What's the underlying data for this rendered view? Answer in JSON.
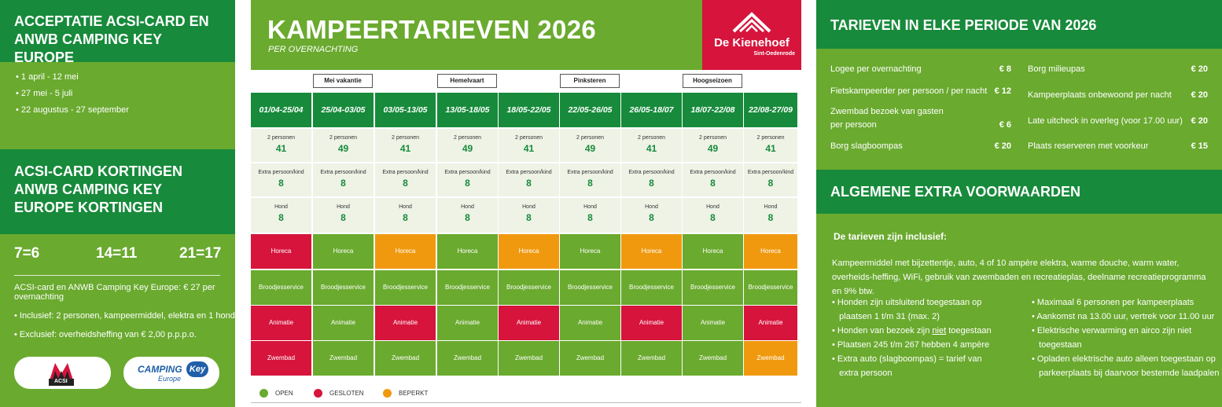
{
  "left": {
    "acceptance_title": "ACCEPTATIE ACSI-CARD EN ANWB CAMPING KEY EUROPE",
    "dates": [
      "1 april - 12 mei",
      "27 mei - 5 juli",
      "22 augustus - 27 september"
    ],
    "discount_title": "ACSI-CARD KORTINGEN ANWB CAMPING KEY EUROPE KORTINGEN",
    "discounts": [
      "7=6",
      "14=11",
      "21=17"
    ],
    "rules": [
      "ACSI-card en ANWB Camping Key Europe: € 27 per overnachting",
      "Inclusief: 2 personen, kampeermiddel, elektra en 1 hond",
      "Exclusief: overheidsheffing van € 2,00 p.p.p.o."
    ],
    "logos": {
      "acsi": "ACSI",
      "camping": "CAMPING",
      "key": "Key",
      "europe": "Europe"
    }
  },
  "middle": {
    "title": "KAMPEERTARIEVEN 2026",
    "subtitle": "PER OVERNACHTING",
    "brand": {
      "name": "De Kienehoef",
      "place": "Sint-Oedenrode",
      "color": "#d6143c"
    },
    "holidays": [
      "Mei vakantie",
      "Hemelvaart",
      "Pinksteren",
      "Hoogseizoen"
    ],
    "periods": [
      "01/04-25/04",
      "25/04-03/05",
      "03/05-13/05",
      "13/05-18/05",
      "18/05-22/05",
      "22/05-26/05",
      "26/05-18/07",
      "18/07-22/08",
      "22/08-27/09"
    ],
    "price_rows": [
      {
        "label": "2 personen",
        "values": [
          "41",
          "49",
          "41",
          "49",
          "41",
          "49",
          "41",
          "49",
          "41"
        ]
      },
      {
        "label": "Extra persoon/kind",
        "values": [
          "8",
          "8",
          "8",
          "8",
          "8",
          "8",
          "8",
          "8",
          "8"
        ]
      },
      {
        "label": "Hond",
        "values": [
          "8",
          "8",
          "8",
          "8",
          "8",
          "8",
          "8",
          "8",
          "8"
        ]
      }
    ],
    "facilities": [
      {
        "label": "Horeca",
        "status": [
          "gesloten",
          "open",
          "beperkt",
          "open",
          "beperkt",
          "open",
          "beperkt",
          "open",
          "beperkt"
        ]
      },
      {
        "label": "Broodjesservice",
        "status": [
          "open",
          "open",
          "open",
          "open",
          "open",
          "open",
          "open",
          "open",
          "open"
        ]
      },
      {
        "label": "Animatie",
        "status": [
          "gesloten",
          "open",
          "gesloten",
          "open",
          "gesloten",
          "open",
          "gesloten",
          "open",
          "gesloten"
        ]
      },
      {
        "label": "Zwembad",
        "status": [
          "gesloten",
          "open",
          "open",
          "open",
          "open",
          "open",
          "open",
          "open",
          "beperkt"
        ]
      }
    ],
    "legend": [
      {
        "label": "OPEN",
        "color": "#6aaa2f"
      },
      {
        "label": "GESLOTEN",
        "color": "#d6143c"
      },
      {
        "label": "BEPERKT",
        "color": "#f0990f"
      }
    ]
  },
  "right": {
    "tariffs_title": "TARIEVEN IN ELKE PERIODE VAN 2026",
    "tariffs_left": [
      {
        "label": "Logee per overnachting",
        "price": "€  8"
      },
      {
        "label": "Fietskampeerder per persoon / per nacht",
        "price": "€ 12"
      },
      {
        "label": "Zwembad bezoek van gasten",
        "label2": "per persoon",
        "price": "€  6"
      },
      {
        "label": "Borg slagboompas",
        "price": "€ 20"
      }
    ],
    "tariffs_right": [
      {
        "label": "Borg milieupas",
        "price": "€ 20"
      },
      {
        "label": "Kampeerplaats onbewoond per nacht",
        "price": "€ 20"
      },
      {
        "label": "Late uitcheck in overleg (voor 17.00 uur)",
        "price": "€ 20"
      },
      {
        "label": "Plaats reserveren met voorkeur",
        "price": "€ 15"
      }
    ],
    "conditions_title": "ALGEMENE EXTRA VOORWAARDEN",
    "included_title": "De tarieven zijn inclusief:",
    "included_text": "Kampeermiddel met bijzettentje, auto, 4 of 10 ampère elektra, warme douche, warm water, overheids-heffing, WiFi, gebruik van zwembaden en recreatieplas, deelname recreatieprogramma en 9% btw.",
    "bullets_left": [
      {
        "text": "Honden zijn uitsluitend toegestaan op",
        "text2": "plaatsen 1 t/m 31 (max. 2)"
      },
      {
        "pre": "Honden van bezoek zijn ",
        "em": "niet",
        "post": " toegestaan"
      },
      {
        "text": "Plaatsen 245 t/m 267 hebben 4 ampère"
      },
      {
        "text": "Extra auto (slagboompas) = tarief van",
        "text2": "extra persoon"
      }
    ],
    "bullets_right": [
      {
        "text": "Maximaal 6 personen per kampeerplaats"
      },
      {
        "text": "Aankomst na 13.00 uur, vertrek voor 11.00 uur"
      },
      {
        "text": "Elektrische verwarming en airco zijn niet",
        "text2": "toegestaan"
      },
      {
        "text": "Opladen elektrische auto alleen toegestaan op",
        "text2": "parkeerplaats bij daarvoor bestemde laadpalen"
      }
    ]
  }
}
